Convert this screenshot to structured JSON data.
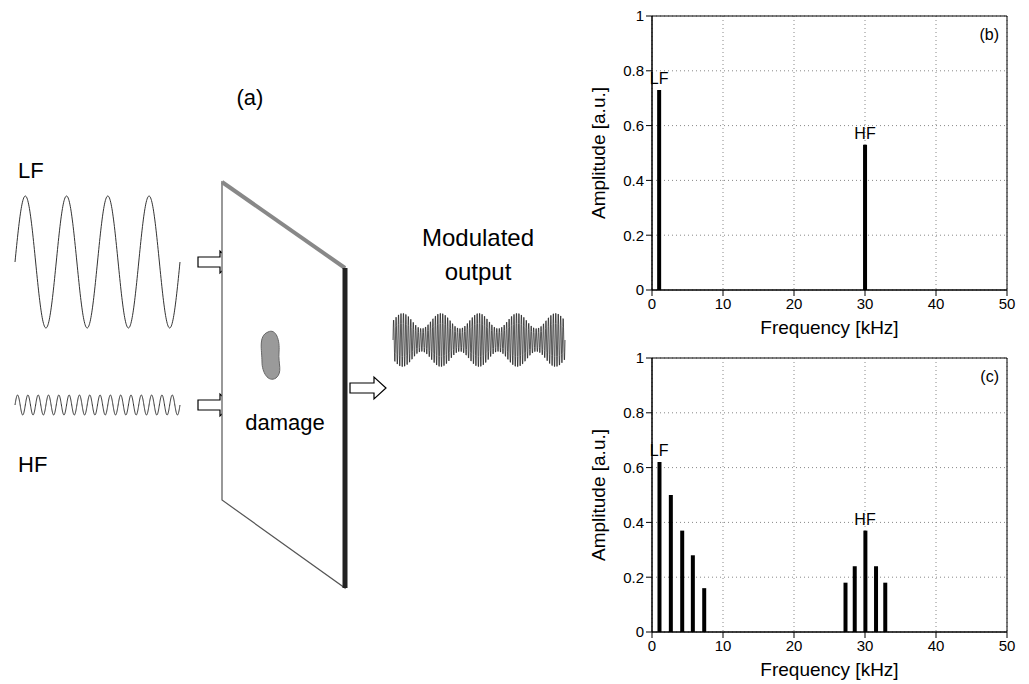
{
  "diagram": {
    "panel_label": "(a)",
    "inputs": [
      "LF",
      "HF"
    ],
    "specimen_label": "damage",
    "output_label": "Modulated output"
  },
  "chart_data": [
    {
      "type": "bar",
      "panel_label": "(b)",
      "x_label": "Frequency [kHz]",
      "y_label": "Amplitude [a.u.]",
      "x": [
        1,
        30
      ],
      "values": [
        0.73,
        0.53
      ],
      "color": "#000000",
      "xlim": [
        0,
        50
      ],
      "xticks": [
        0,
        10,
        20,
        30,
        40,
        50
      ],
      "ylim": [
        0,
        1
      ],
      "yticks": [
        0,
        0.2,
        0.4,
        0.6,
        0.8,
        1
      ],
      "grid": true,
      "annotations": [
        {
          "text": "LF",
          "x": 1
        },
        {
          "text": "HF",
          "x": 30
        }
      ]
    },
    {
      "type": "bar",
      "panel_label": "(c)",
      "x_label": "Frequency [kHz]",
      "y_label": "Amplitude [a.u.]",
      "x": [
        1,
        2.6,
        4.2,
        5.7,
        7.3,
        27.2,
        28.5,
        30,
        31.5,
        32.8
      ],
      "values": [
        0.62,
        0.5,
        0.37,
        0.28,
        0.16,
        0.18,
        0.24,
        0.37,
        0.24,
        0.18
      ],
      "color": "#000000",
      "xlim": [
        0,
        50
      ],
      "xticks": [
        0,
        10,
        20,
        30,
        40,
        50
      ],
      "ylim": [
        0,
        1
      ],
      "yticks": [
        0,
        0.2,
        0.4,
        0.6,
        0.8,
        1
      ],
      "grid": true,
      "annotations": [
        {
          "text": "LF",
          "x": 1
        },
        {
          "text": "HF",
          "x": 30
        }
      ]
    }
  ]
}
